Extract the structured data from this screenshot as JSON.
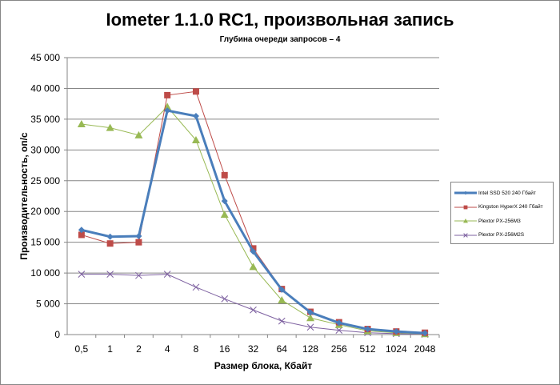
{
  "chart_data": {
    "type": "line",
    "title": "Iometer 1.1.0 RC1, произвольная запись",
    "subtitle": "Глубина очереди запросов – 4",
    "xlabel": "Размер блока, Кбайт",
    "ylabel": "Производительность, оп/с",
    "categories": [
      "0,5",
      "1",
      "2",
      "4",
      "8",
      "16",
      "32",
      "64",
      "128",
      "256",
      "512",
      "1024",
      "2048"
    ],
    "ylim": [
      0,
      45000
    ],
    "yticks": [
      "0",
      "5 000",
      "10 000",
      "15 000",
      "20 000",
      "25 000",
      "30 000",
      "35 000",
      "40 000",
      "45 000"
    ],
    "grid": true,
    "legend_position": "right",
    "series": [
      {
        "name": "Intel SSD 520 240 Гбайт",
        "color": "#4a7ebb",
        "marker": "diamond",
        "width": 3,
        "values": [
          17000,
          15900,
          16000,
          36400,
          35500,
          21700,
          13500,
          7300,
          3600,
          1900,
          900,
          500,
          250
        ]
      },
      {
        "name": "Kingston HyperX 240 Гбайт",
        "color": "#be4b48",
        "marker": "square",
        "width": 1,
        "values": [
          16200,
          14800,
          15000,
          38900,
          39500,
          25900,
          14000,
          7400,
          3700,
          2000,
          900,
          500,
          300
        ]
      },
      {
        "name": "Plextor PX-256M3",
        "color": "#98b954",
        "marker": "triangle",
        "width": 1,
        "values": [
          34200,
          33600,
          32400,
          37000,
          31600,
          19500,
          11000,
          5600,
          2700,
          1600,
          600,
          300,
          100
        ]
      },
      {
        "name": "Plextor PX-256M2S",
        "color": "#7d60a0",
        "marker": "x",
        "width": 1,
        "values": [
          9800,
          9800,
          9600,
          9800,
          7700,
          5800,
          4000,
          2200,
          1200,
          700,
          300,
          150,
          50
        ]
      }
    ]
  }
}
